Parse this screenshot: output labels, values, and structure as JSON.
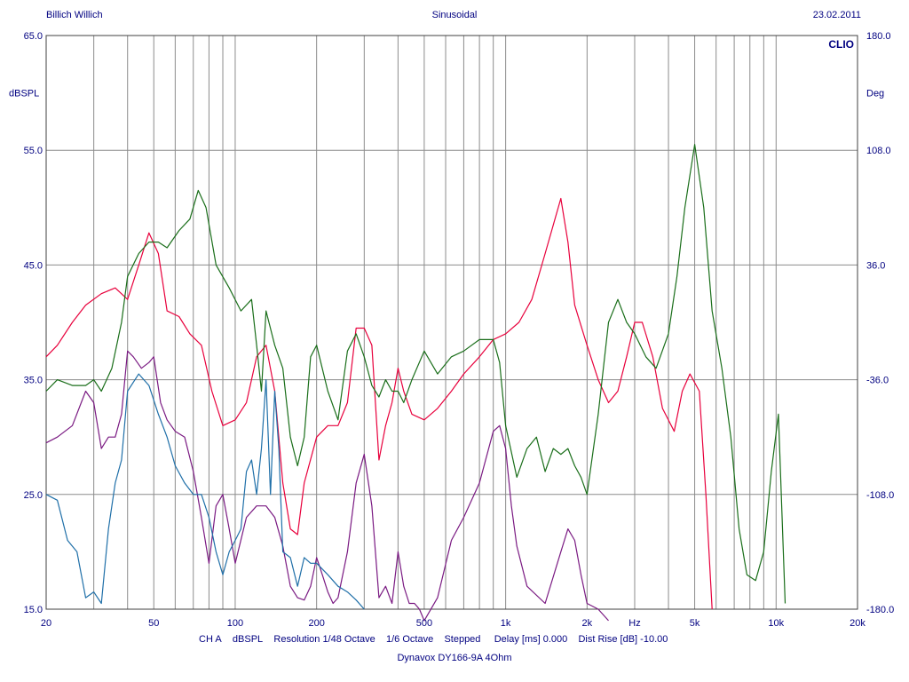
{
  "header": {
    "left": "Billich Willich",
    "center": "Sinusoidal",
    "right": "23.02.2011"
  },
  "brand": "CLIO",
  "footer": {
    "channel": "CH A",
    "unit": "dBSPL",
    "resolution": "Resolution 1/48 Octave",
    "smoothing": "1/6 Octave",
    "mode": "Stepped",
    "delay": "Delay [ms] 0.000",
    "dist_rise": "Dist Rise [dB] -10.00",
    "device": "Dynavox DY166-9A 4Ohm"
  },
  "colors": {
    "text": "#000080",
    "grid": "#8c8c8c",
    "red": "#e8003c",
    "green": "#1a6e1a",
    "purple": "#7a1a82",
    "blue": "#1f6fa8"
  },
  "chart_data": {
    "type": "line",
    "x_scale": "log",
    "xlim": [
      20,
      20000
    ],
    "ylim": [
      15,
      65
    ],
    "y2lim": [
      -180,
      180
    ],
    "ylabel": "dBSPL",
    "y2label": "Deg",
    "xlabel": "Hz",
    "x_ticks": [
      "20",
      "50",
      "100",
      "200",
      "500",
      "1k",
      "2k",
      "Hz",
      "5k",
      "10k",
      "20k"
    ],
    "y_ticks": [
      "65.0",
      "55.0",
      "45.0",
      "35.0",
      "25.0",
      "15.0"
    ],
    "y2_ticks": [
      "180.0",
      "108.0",
      "36.0",
      "-36.0",
      "-108.0",
      "-180.0"
    ],
    "grid": true,
    "series": [
      {
        "color": "red",
        "x": [
          20,
          22,
          25,
          28,
          32,
          36,
          40,
          44,
          48,
          52,
          56,
          62,
          68,
          75,
          82,
          90,
          100,
          110,
          120,
          130,
          140,
          150,
          160,
          170,
          180,
          200,
          220,
          240,
          260,
          280,
          300,
          320,
          340,
          360,
          380,
          400,
          420,
          450,
          500,
          560,
          630,
          700,
          800,
          900,
          1000,
          1120,
          1250,
          1400,
          1600,
          1700,
          1800,
          2000,
          2200,
          2400,
          2600,
          2800,
          3000,
          3200,
          3500,
          3800,
          4200,
          4500,
          4800,
          5200,
          5500,
          5800
        ],
        "y": [
          37,
          38,
          40,
          41.5,
          42.5,
          43,
          42,
          45,
          47.8,
          46,
          41,
          40.5,
          39,
          38,
          34,
          31,
          31.5,
          33,
          37,
          38,
          34,
          26,
          22,
          21.5,
          26,
          30,
          31,
          31,
          33,
          39.5,
          39.5,
          38,
          28,
          31,
          33,
          36,
          34,
          32,
          31.5,
          32.5,
          34,
          35.5,
          37,
          38.5,
          39,
          40,
          42,
          46,
          50.8,
          47,
          41.5,
          38,
          35,
          33,
          34,
          37,
          40,
          40,
          37,
          32.5,
          30.5,
          34,
          35.5,
          34,
          25,
          15
        ]
      },
      {
        "color": "green",
        "x": [
          20,
          22,
          25,
          28,
          30,
          32,
          35,
          38,
          40,
          44,
          48,
          52,
          56,
          62,
          68,
          73,
          78,
          85,
          95,
          105,
          115,
          120,
          125,
          130,
          140,
          150,
          160,
          170,
          180,
          190,
          200,
          220,
          240,
          260,
          280,
          300,
          320,
          340,
          360,
          380,
          400,
          420,
          450,
          500,
          560,
          630,
          700,
          800,
          900,
          950,
          1000,
          1100,
          1200,
          1300,
          1400,
          1500,
          1600,
          1700,
          1800,
          1900,
          2000,
          2200,
          2400,
          2600,
          2800,
          3000,
          3300,
          3600,
          4000,
          4300,
          4600,
          5000,
          5400,
          5800,
          6300,
          6800,
          7300,
          7800,
          8400,
          9000,
          9600,
          10200,
          10800
        ],
        "y": [
          34,
          35,
          34.5,
          34.5,
          35,
          34,
          36,
          40,
          44,
          46,
          47,
          47,
          46.5,
          48,
          49,
          51.5,
          50,
          45,
          43,
          41,
          42,
          38,
          34,
          41,
          38,
          36,
          30,
          27.5,
          30,
          37,
          38,
          34,
          31.5,
          37.5,
          39,
          37,
          34.5,
          33.5,
          35,
          34,
          34,
          33,
          35,
          37.5,
          35.5,
          37,
          37.5,
          38.5,
          38.5,
          36.5,
          31,
          26.5,
          29,
          30,
          27,
          29,
          28.5,
          29,
          27.5,
          26.5,
          25,
          32,
          40,
          42,
          40,
          39,
          37,
          36,
          39,
          44,
          50,
          55.5,
          50,
          41,
          36,
          30,
          22,
          18,
          17.5,
          20,
          27,
          32,
          15.5
        ]
      },
      {
        "color": "purple",
        "x": [
          20,
          22,
          25,
          28,
          30,
          32,
          34,
          36,
          38,
          40,
          42,
          45,
          48,
          50,
          53,
          56,
          60,
          65,
          70,
          75,
          80,
          85,
          90,
          95,
          100,
          110,
          120,
          130,
          140,
          150,
          160,
          170,
          180,
          190,
          200,
          210,
          220,
          230,
          240,
          260,
          280,
          300,
          320,
          340,
          360,
          380,
          400,
          420,
          440,
          460,
          480,
          500,
          560,
          630,
          700,
          800,
          900,
          950,
          1000,
          1050,
          1100,
          1200,
          1400,
          1600,
          1700,
          1800,
          1900,
          2000,
          2200,
          2400
        ],
        "y": [
          29.5,
          30,
          31,
          34,
          33,
          29,
          30,
          30,
          32,
          37.5,
          37,
          36,
          36.5,
          37,
          33,
          31.5,
          30.5,
          30,
          27,
          23,
          19,
          24,
          25,
          22,
          19,
          23,
          24,
          24,
          23,
          20.5,
          17,
          16,
          15.8,
          17,
          19.5,
          18,
          16.5,
          15.5,
          16,
          20,
          26,
          28.5,
          24,
          16,
          17,
          15.5,
          20,
          17,
          15.5,
          15.5,
          15,
          14,
          16,
          21,
          23,
          26,
          30.5,
          31,
          29,
          24,
          20.5,
          17,
          15.5,
          20,
          22,
          21,
          18,
          15.5,
          15,
          14
        ]
      },
      {
        "color": "blue",
        "x": [
          20,
          22,
          24,
          26,
          28,
          30,
          32,
          34,
          36,
          38,
          40,
          44,
          48,
          52,
          56,
          60,
          65,
          70,
          75,
          80,
          85,
          90,
          95,
          100,
          105,
          110,
          115,
          120,
          125,
          130,
          135,
          140,
          145,
          150,
          160,
          170,
          180,
          190,
          200,
          220,
          240,
          260,
          280,
          300
        ],
        "y": [
          25,
          24.5,
          21,
          20,
          16,
          16.5,
          15.5,
          22,
          26,
          28,
          34,
          35.5,
          34.5,
          32,
          30,
          27.5,
          26,
          25,
          25,
          23,
          20,
          18,
          20,
          21,
          22,
          27,
          28,
          25,
          29,
          35,
          25,
          34,
          29,
          20,
          19.5,
          17,
          19.5,
          19,
          19,
          18,
          17,
          16.5,
          15.8,
          15
        ]
      }
    ]
  }
}
